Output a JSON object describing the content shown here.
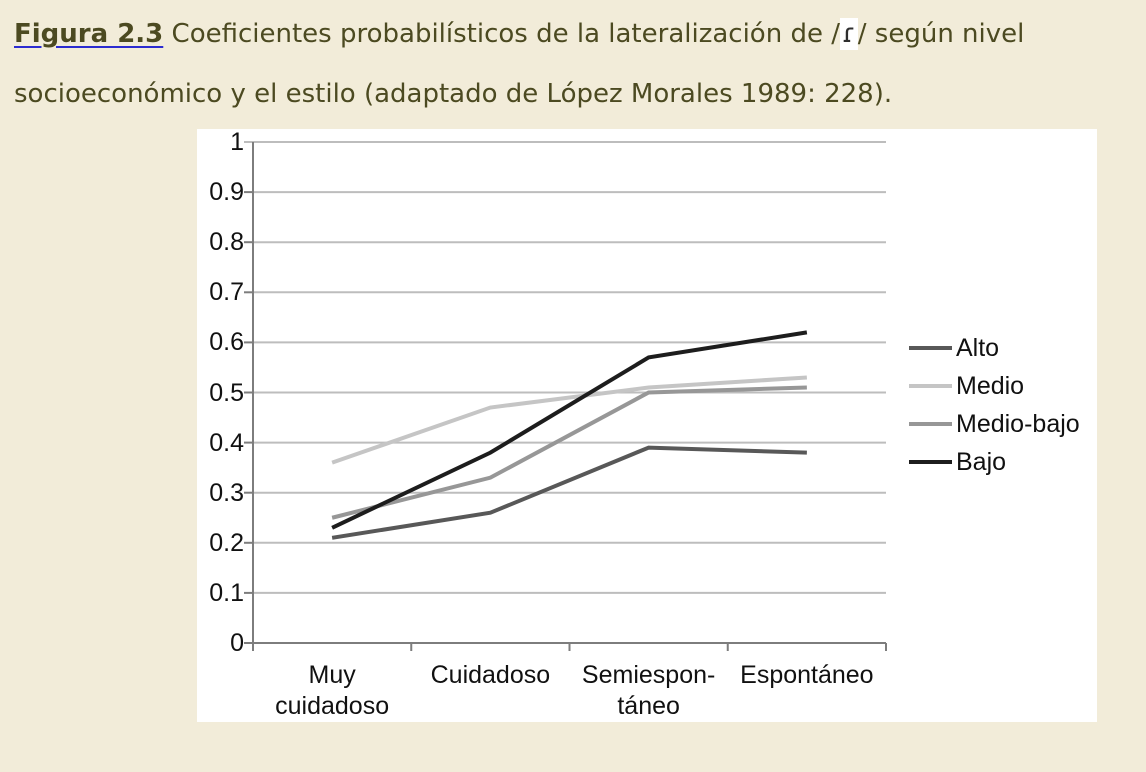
{
  "page": {
    "background_color": "#f2ecd9",
    "caption_text_color": "#4c4a21",
    "figure_link_underline_color": "#2b2bd0"
  },
  "caption": {
    "figure_label": "Figura 2.3",
    "text_1": " Coeficientes probabilísticos de la lateralización de /",
    "phoneme": "ɾ",
    "text_2": "/ según nivel",
    "text_3": "socioeconómico y el estilo (adaptado de López Morales 1989: 228)."
  },
  "chart_data": {
    "type": "line",
    "title": "",
    "xlabel": "",
    "ylabel": "",
    "categories": [
      "Muy cuidadoso",
      "Cuidadoso",
      "Semiespontáneo",
      "Espontáneo"
    ],
    "category_display_lines": [
      [
        "Muy",
        "cuidadoso"
      ],
      [
        "Cuidadoso"
      ],
      [
        "Semiespon-",
        "táneo"
      ],
      [
        "Espontáneo"
      ]
    ],
    "series": [
      {
        "name": "Alto",
        "values": [
          0.21,
          0.26,
          0.39,
          0.38
        ],
        "color": "#585858"
      },
      {
        "name": "Medio",
        "values": [
          0.36,
          0.47,
          0.51,
          0.53
        ],
        "color": "#c5c5c5"
      },
      {
        "name": "Medio-bajo",
        "values": [
          0.25,
          0.33,
          0.5,
          0.51
        ],
        "color": "#979797"
      },
      {
        "name": "Bajo",
        "values": [
          0.23,
          0.38,
          0.57,
          0.62
        ],
        "color": "#1d1d1d"
      }
    ],
    "ylim": [
      0,
      1
    ],
    "ytick_step": 0.1,
    "ytick_labels": [
      "0",
      "0.1",
      "0.2",
      "0.3",
      "0.4",
      "0.5",
      "0.6",
      "0.7",
      "0.8",
      "0.9",
      "1"
    ],
    "grid": "horizontal",
    "grid_color": "#bdbdbd",
    "axis_color": "#7d7d7d",
    "label_color": "#111111",
    "plot_background": "#ffffff",
    "legend_position": "right"
  }
}
